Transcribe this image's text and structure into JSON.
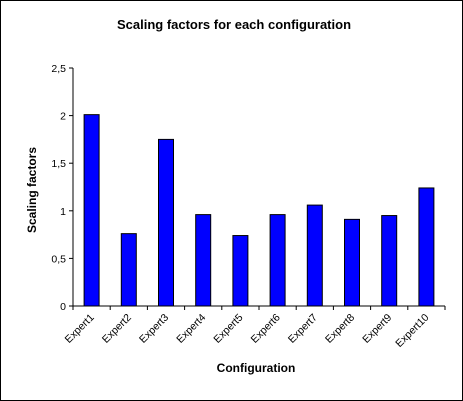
{
  "chart_data": {
    "type": "bar",
    "title": "Scaling factors for each configuration",
    "xlabel": "Configuration",
    "ylabel": "Scaling factors",
    "categories": [
      "Expert1",
      "Expert2",
      "Expert3",
      "Expert4",
      "Expert5",
      "Expert6",
      "Expert7",
      "Expert8",
      "Expert9",
      "Expert10"
    ],
    "values": [
      2.01,
      0.76,
      1.75,
      0.96,
      0.74,
      0.96,
      1.06,
      0.91,
      0.95,
      1.24
    ],
    "ylim": [
      0,
      2.5
    ],
    "yticks": [
      "0",
      "0,5",
      "1",
      "1,5",
      "2",
      "2,5"
    ],
    "ytick_values": [
      0,
      0.5,
      1,
      1.5,
      2,
      2.5
    ],
    "bar_color": "#0000FF",
    "grid": false,
    "legend": "none"
  }
}
